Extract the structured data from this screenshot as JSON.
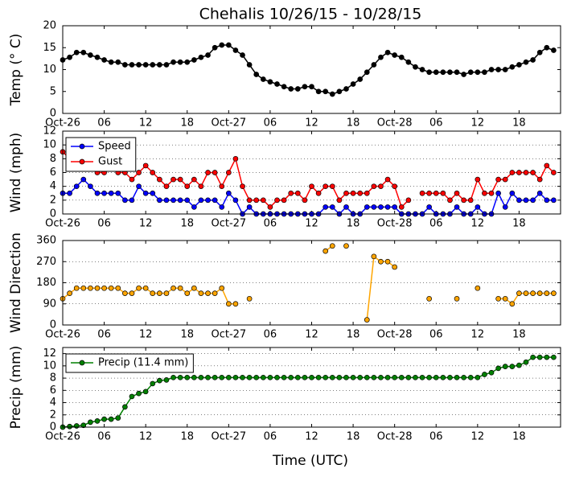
{
  "chart_data": [
    {
      "type": "line",
      "title": "Chehalis 10/26/15 - 10/28/15",
      "ylabel": "Temp (° C)",
      "categories": [
        "Oct-26",
        null,
        null,
        null,
        null,
        null,
        "06",
        null,
        null,
        null,
        null,
        null,
        "12",
        null,
        null,
        null,
        null,
        null,
        "18",
        null,
        null,
        null,
        null,
        null,
        "Oct-27",
        null,
        null,
        null,
        null,
        null,
        "06",
        null,
        null,
        null,
        null,
        null,
        "12",
        null,
        null,
        null,
        null,
        null,
        "18",
        null,
        null,
        null,
        null,
        null,
        "Oct-28",
        null,
        null,
        null,
        null,
        null,
        "06",
        null,
        null,
        null,
        null,
        null,
        "12",
        null,
        null,
        null,
        null,
        null,
        "18",
        null,
        null,
        null,
        null,
        null
      ],
      "values": [
        12.2,
        12.8,
        13.9,
        13.9,
        13.3,
        12.8,
        12.2,
        11.7,
        11.7,
        11.1,
        11.1,
        11.1,
        11.1,
        11.1,
        11.1,
        11.1,
        11.7,
        11.7,
        11.7,
        12.2,
        12.8,
        13.3,
        15,
        15.6,
        15.6,
        14.4,
        13.3,
        11.1,
        8.9,
        7.8,
        7.2,
        6.7,
        6.1,
        5.6,
        5.6,
        6.1,
        6.1,
        5,
        5,
        4.4,
        5,
        5.6,
        6.7,
        7.8,
        9.4,
        11.1,
        12.8,
        13.9,
        13.3,
        12.8,
        11.7,
        10.6,
        10,
        9.4,
        9.4,
        9.4,
        9.4,
        9.4,
        8.9,
        9.4,
        9.4,
        9.4,
        10,
        10,
        10,
        10.6,
        11.1,
        11.7,
        12.2,
        13.9,
        15,
        14.4
      ],
      "color": "#000000",
      "ylim": [
        0,
        20
      ],
      "yticks": [
        0,
        5,
        10,
        15,
        20
      ],
      "grid": false
    },
    {
      "type": "line",
      "ylabel": "Wind (mph)",
      "categories": [
        "Oct-26",
        null,
        null,
        null,
        null,
        null,
        "06",
        null,
        null,
        null,
        null,
        null,
        "12",
        null,
        null,
        null,
        null,
        null,
        "18",
        null,
        null,
        null,
        null,
        null,
        "Oct-27",
        null,
        null,
        null,
        null,
        null,
        "06",
        null,
        null,
        null,
        null,
        null,
        "12",
        null,
        null,
        null,
        null,
        null,
        "18",
        null,
        null,
        null,
        null,
        null,
        "Oct-28",
        null,
        null,
        null,
        null,
        null,
        "06",
        null,
        null,
        null,
        null,
        null,
        "12",
        null,
        null,
        null,
        null,
        null,
        "18",
        null,
        null,
        null,
        null,
        null
      ],
      "series": [
        {
          "name": "Speed",
          "color": "#0000ff",
          "values": [
            3,
            3,
            4,
            5,
            4,
            3,
            3,
            3,
            3,
            2,
            2,
            4,
            3,
            3,
            2,
            2,
            2,
            2,
            2,
            1,
            2,
            2,
            2,
            1,
            3,
            2,
            0,
            1,
            0,
            0,
            0,
            0,
            0,
            0,
            0,
            0,
            0,
            0,
            1,
            1,
            0,
            1,
            0,
            0,
            1,
            1,
            1,
            1,
            1,
            0,
            0,
            0,
            0,
            1,
            0,
            0,
            0,
            1,
            0,
            0,
            1,
            0,
            0,
            3,
            1,
            3,
            2,
            2,
            2,
            3,
            2,
            2
          ]
        },
        {
          "name": "Gust",
          "color": "#ff0000",
          "values": [
            9,
            8,
            8,
            7,
            7,
            6,
            6,
            7,
            6,
            6,
            5,
            6,
            7,
            6,
            5,
            4,
            5,
            5,
            4,
            5,
            4,
            6,
            6,
            4,
            6,
            8,
            4,
            2,
            2,
            2,
            1,
            2,
            2,
            3,
            3,
            2,
            4,
            3,
            4,
            4,
            2,
            3,
            3,
            3,
            3,
            4,
            4,
            5,
            4,
            1,
            2,
            null,
            3,
            3,
            3,
            3,
            2,
            3,
            2,
            2,
            5,
            3,
            3,
            5,
            5,
            6,
            6,
            6,
            6,
            5,
            7,
            6
          ]
        }
      ],
      "ylim": [
        0,
        12
      ],
      "yticks": [
        0,
        2,
        4,
        6,
        8,
        10,
        12
      ],
      "grid": true,
      "legend": "upper left"
    },
    {
      "type": "line",
      "ylabel": "Wind Direction",
      "categories": [
        "Oct-26",
        null,
        null,
        null,
        null,
        null,
        "06",
        null,
        null,
        null,
        null,
        null,
        "12",
        null,
        null,
        null,
        null,
        null,
        "18",
        null,
        null,
        null,
        null,
        null,
        "Oct-27",
        null,
        null,
        null,
        null,
        null,
        "06",
        null,
        null,
        null,
        null,
        null,
        "12",
        null,
        null,
        null,
        null,
        null,
        "18",
        null,
        null,
        null,
        null,
        null,
        "Oct-28",
        null,
        null,
        null,
        null,
        null,
        "06",
        null,
        null,
        null,
        null,
        null,
        "12",
        null,
        null,
        null,
        null,
        null,
        "18",
        null,
        null,
        null,
        null,
        null
      ],
      "values": [
        112,
        135,
        157,
        157,
        157,
        157,
        157,
        157,
        157,
        135,
        135,
        157,
        157,
        135,
        135,
        135,
        157,
        157,
        135,
        157,
        135,
        135,
        135,
        157,
        90,
        90,
        null,
        112,
        null,
        null,
        null,
        null,
        null,
        null,
        null,
        null,
        null,
        null,
        315,
        337,
        null,
        337,
        null,
        null,
        22,
        292,
        270,
        270,
        247,
        null,
        null,
        null,
        null,
        112,
        null,
        null,
        null,
        112,
        null,
        null,
        157,
        null,
        null,
        112,
        112,
        90,
        135,
        135,
        135,
        135,
        135,
        135
      ],
      "color": "#ffa500",
      "ylim": [
        0,
        360
      ],
      "yticks": [
        0,
        90,
        180,
        270,
        360
      ],
      "grid": true
    },
    {
      "type": "line",
      "ylabel": "Precip (mm)",
      "xlabel": "Time (UTC)",
      "categories": [
        "Oct-26",
        null,
        null,
        null,
        null,
        null,
        "06",
        null,
        null,
        null,
        null,
        null,
        "12",
        null,
        null,
        null,
        null,
        null,
        "18",
        null,
        null,
        null,
        null,
        null,
        "Oct-27",
        null,
        null,
        null,
        null,
        null,
        "06",
        null,
        null,
        null,
        null,
        null,
        "12",
        null,
        null,
        null,
        null,
        null,
        "18",
        null,
        null,
        null,
        null,
        null,
        "Oct-28",
        null,
        null,
        null,
        null,
        null,
        "06",
        null,
        null,
        null,
        null,
        null,
        "12",
        null,
        null,
        null,
        null,
        null,
        "18",
        null,
        null,
        null,
        null,
        null
      ],
      "series": [
        {
          "name": "Precip (11.4 mm)",
          "color": "#008000",
          "values": [
            0,
            0.1,
            0.2,
            0.3,
            0.8,
            1,
            1.3,
            1.3,
            1.5,
            3.3,
            5,
            5.5,
            5.8,
            7.1,
            7.6,
            7.7,
            8.1,
            8.1,
            8.1,
            8.1,
            8.1,
            8.1,
            8.1,
            8.1,
            8.1,
            8.1,
            8.1,
            8.1,
            8.1,
            8.1,
            8.1,
            8.1,
            8.1,
            8.1,
            8.1,
            8.1,
            8.1,
            8.1,
            8.1,
            8.1,
            8.1,
            8.1,
            8.1,
            8.1,
            8.1,
            8.1,
            8.1,
            8.1,
            8.1,
            8.1,
            8.1,
            8.1,
            8.1,
            8.1,
            8.1,
            8.1,
            8.1,
            8.1,
            8.1,
            8.1,
            8.1,
            8.6,
            8.9,
            9.6,
            9.9,
            9.9,
            10.1,
            10.6,
            11.4,
            11.4,
            11.4,
            11.4
          ]
        }
      ],
      "ylim": [
        0,
        13
      ],
      "yticks": [
        0,
        2,
        4,
        6,
        8,
        10,
        12
      ],
      "grid": true,
      "legend": "upper left"
    }
  ]
}
